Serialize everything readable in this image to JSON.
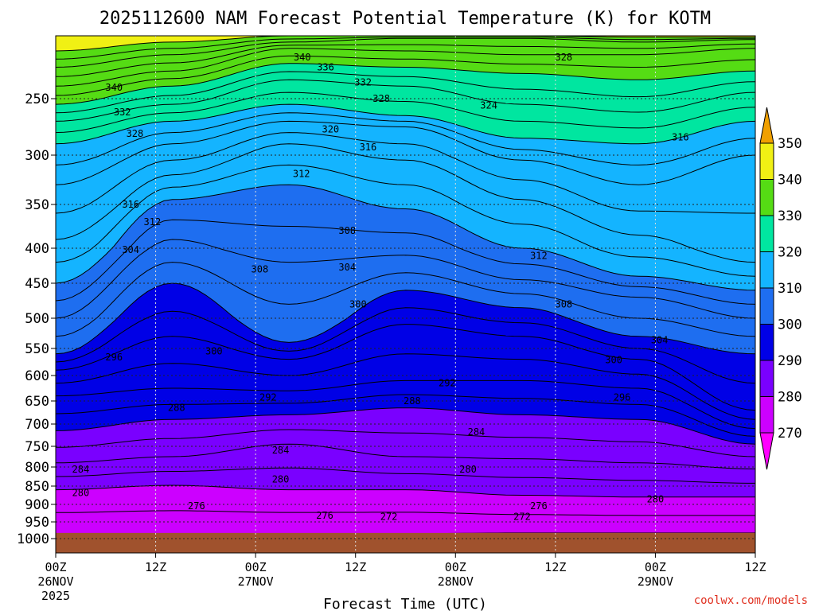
{
  "chart_data": {
    "type": "contour",
    "title": "2025112600 NAM Forecast Potential Temperature (K) for KOTM",
    "xlabel": "Forecast Time (UTC)",
    "ylabel": "",
    "x_ticks": [
      {
        "hour": 0,
        "label": "00Z",
        "date": "26NOV",
        "year": "2025"
      },
      {
        "hour": 12,
        "label": "12Z",
        "date": "",
        "year": ""
      },
      {
        "hour": 24,
        "label": "00Z",
        "date": "27NOV",
        "year": ""
      },
      {
        "hour": 36,
        "label": "12Z",
        "date": "",
        "year": ""
      },
      {
        "hour": 48,
        "label": "00Z",
        "date": "28NOV",
        "year": ""
      },
      {
        "hour": 60,
        "label": "12Z",
        "date": "",
        "year": ""
      },
      {
        "hour": 72,
        "label": "00Z",
        "date": "29NOV",
        "year": ""
      },
      {
        "hour": 84,
        "label": "12Z",
        "date": "",
        "year": ""
      }
    ],
    "xlim": [
      0,
      84
    ],
    "y_ticks": [
      250,
      300,
      350,
      400,
      450,
      500,
      550,
      600,
      650,
      700,
      750,
      800,
      850,
      900,
      950,
      1000
    ],
    "ylim_hpa": [
      200,
      1010
    ],
    "colorbar": {
      "ticks": [
        270,
        280,
        290,
        300,
        310,
        320,
        330,
        340,
        350
      ],
      "bands": [
        {
          "lo": 260,
          "hi": 270,
          "color": "#ff00ff"
        },
        {
          "lo": 270,
          "hi": 280,
          "color": "#cc00ff"
        },
        {
          "lo": 280,
          "hi": 290,
          "color": "#7a00ff"
        },
        {
          "lo": 290,
          "hi": 300,
          "color": "#0000e6"
        },
        {
          "lo": 300,
          "hi": 310,
          "color": "#1e6ef0"
        },
        {
          "lo": 310,
          "hi": 320,
          "color": "#14b4ff"
        },
        {
          "lo": 320,
          "hi": 330,
          "color": "#00e6a0"
        },
        {
          "lo": 330,
          "hi": 340,
          "color": "#55dc14"
        },
        {
          "lo": 340,
          "hi": 350,
          "color": "#f0f014"
        },
        {
          "lo": 350,
          "hi": 360,
          "color": "#f0a000"
        }
      ]
    },
    "isotherm_profiles": [
      {
        "theta": 276,
        "p": [
          987,
          988,
          986,
          985,
          983,
          983,
          983
        ]
      },
      {
        "theta": 280,
        "p": [
          860,
          848,
          860,
          860,
          875,
          880,
          880
        ]
      },
      {
        "theta": 284,
        "p": [
          790,
          775,
          745,
          775,
          780,
          790,
          805
        ]
      },
      {
        "theta": 288,
        "p": [
          715,
          690,
          680,
          665,
          680,
          690,
          745
        ]
      },
      {
        "theta": 292,
        "p": [
          640,
          625,
          630,
          610,
          610,
          625,
          710
        ]
      },
      {
        "theta": 296,
        "p": [
          590,
          530,
          570,
          510,
          530,
          570,
          670
        ]
      },
      {
        "theta": 300,
        "p": [
          560,
          450,
          540,
          460,
          485,
          530,
          560
        ]
      },
      {
        "theta": 304,
        "p": [
          500,
          390,
          420,
          410,
          445,
          470,
          500
        ]
      },
      {
        "theta": 308,
        "p": [
          450,
          345,
          330,
          355,
          400,
          440,
          460
        ]
      },
      {
        "theta": 312,
        "p": [
          390,
          320,
          290,
          305,
          345,
          385,
          420
        ]
      },
      {
        "theta": 316,
        "p": [
          330,
          290,
          270,
          275,
          305,
          330,
          300
        ]
      },
      {
        "theta": 320,
        "p": [
          290,
          270,
          255,
          265,
          285,
          290,
          270
        ]
      },
      {
        "theta": 324,
        "p": [
          270,
          255,
          235,
          240,
          255,
          262,
          245
        ]
      },
      {
        "theta": 328,
        "p": [
          255,
          240,
          222,
          225,
          230,
          235,
          228
        ]
      },
      {
        "theta": 332,
        "p": [
          240,
          228,
          210,
          212,
          215,
          215,
          210
        ]
      },
      {
        "theta": 336,
        "p": [
          225,
          215,
          205,
          202,
          202,
          205,
          203
        ]
      },
      {
        "theta": 340,
        "p": [
          212,
          205,
          200,
          200,
          200,
          201,
          201
        ]
      }
    ],
    "profile_hours": [
      0,
      14,
      28,
      42,
      56,
      70,
      84
    ],
    "contour_labels": [
      {
        "text": "340",
        "hour": 29.6,
        "p": 217
      },
      {
        "text": "336",
        "hour": 32.4,
        "p": 225
      },
      {
        "text": "332",
        "hour": 36.9,
        "p": 237
      },
      {
        "text": "328",
        "hour": 39.1,
        "p": 250
      },
      {
        "text": "328",
        "hour": 61.0,
        "p": 217
      },
      {
        "text": "324",
        "hour": 52.0,
        "p": 256
      },
      {
        "text": "340",
        "hour": 7.0,
        "p": 241
      },
      {
        "text": "332",
        "hour": 8.0,
        "p": 262
      },
      {
        "text": "328",
        "hour": 9.5,
        "p": 281
      },
      {
        "text": "320",
        "hour": 33.0,
        "p": 277
      },
      {
        "text": "316",
        "hour": 37.5,
        "p": 293
      },
      {
        "text": "316",
        "hour": 75.0,
        "p": 284
      },
      {
        "text": "312",
        "hour": 29.5,
        "p": 319
      },
      {
        "text": "316",
        "hour": 9.0,
        "p": 350
      },
      {
        "text": "312",
        "hour": 11.6,
        "p": 370
      },
      {
        "text": "308",
        "hour": 35.0,
        "p": 380
      },
      {
        "text": "304",
        "hour": 9.0,
        "p": 402
      },
      {
        "text": "308",
        "hour": 24.5,
        "p": 430
      },
      {
        "text": "304",
        "hour": 35.0,
        "p": 427
      },
      {
        "text": "312",
        "hour": 58.0,
        "p": 411
      },
      {
        "text": "300",
        "hour": 36.3,
        "p": 480
      },
      {
        "text": "308",
        "hour": 61.0,
        "p": 480
      },
      {
        "text": "300",
        "hour": 19.0,
        "p": 555
      },
      {
        "text": "296",
        "hour": 7.0,
        "p": 566
      },
      {
        "text": "304",
        "hour": 72.5,
        "p": 536
      },
      {
        "text": "300",
        "hour": 67.0,
        "p": 571
      },
      {
        "text": "292",
        "hour": 25.5,
        "p": 643
      },
      {
        "text": "292",
        "hour": 47.0,
        "p": 615
      },
      {
        "text": "296",
        "hour": 68.0,
        "p": 643
      },
      {
        "text": "288",
        "hour": 14.5,
        "p": 665
      },
      {
        "text": "288",
        "hour": 42.8,
        "p": 650
      },
      {
        "text": "284",
        "hour": 50.5,
        "p": 718
      },
      {
        "text": "284",
        "hour": 27.0,
        "p": 760
      },
      {
        "text": "284",
        "hour": 3.0,
        "p": 806
      },
      {
        "text": "280",
        "hour": 27.0,
        "p": 832
      },
      {
        "text": "280",
        "hour": 49.5,
        "p": 806
      },
      {
        "text": "280",
        "hour": 3.0,
        "p": 869
      },
      {
        "text": "280",
        "hour": 72.0,
        "p": 886
      },
      {
        "text": "276",
        "hour": 16.9,
        "p": 905
      },
      {
        "text": "276",
        "hour": 32.3,
        "p": 932
      },
      {
        "text": "276",
        "hour": 58.0,
        "p": 905
      },
      {
        "text": "272",
        "hour": 40.0,
        "p": 935
      },
      {
        "text": "272",
        "hour": 56.0,
        "p": 935
      }
    ],
    "surface_pressure_hpa": 983,
    "grid": true
  },
  "credit": "coolwx.com/models",
  "colors": {
    "ground": "#a0522d",
    "credit": "#e03020",
    "grid": "#505050"
  }
}
